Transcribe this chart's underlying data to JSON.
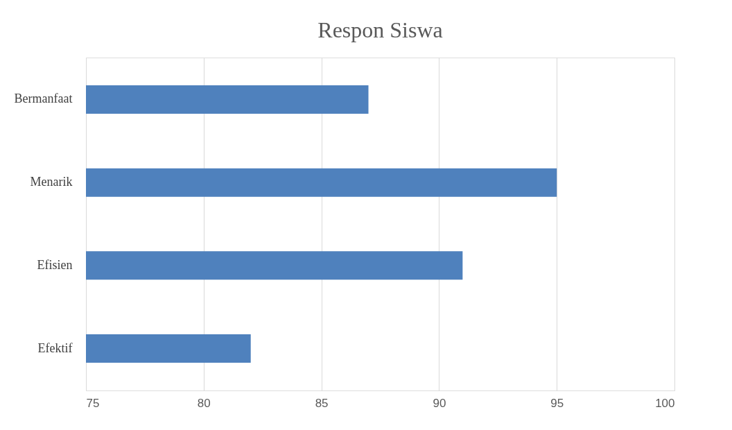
{
  "chart_data": {
    "type": "bar",
    "orientation": "horizontal",
    "title": "Respon Siswa",
    "categories": [
      "Bermanfaat",
      "Menarik",
      "Efisien",
      "Efektif"
    ],
    "values": [
      87,
      95,
      91,
      82
    ],
    "color": "#4f81bd",
    "xlim": [
      75,
      100
    ],
    "xticks": [
      75,
      80,
      85,
      90,
      95,
      100
    ],
    "grid": "x"
  }
}
